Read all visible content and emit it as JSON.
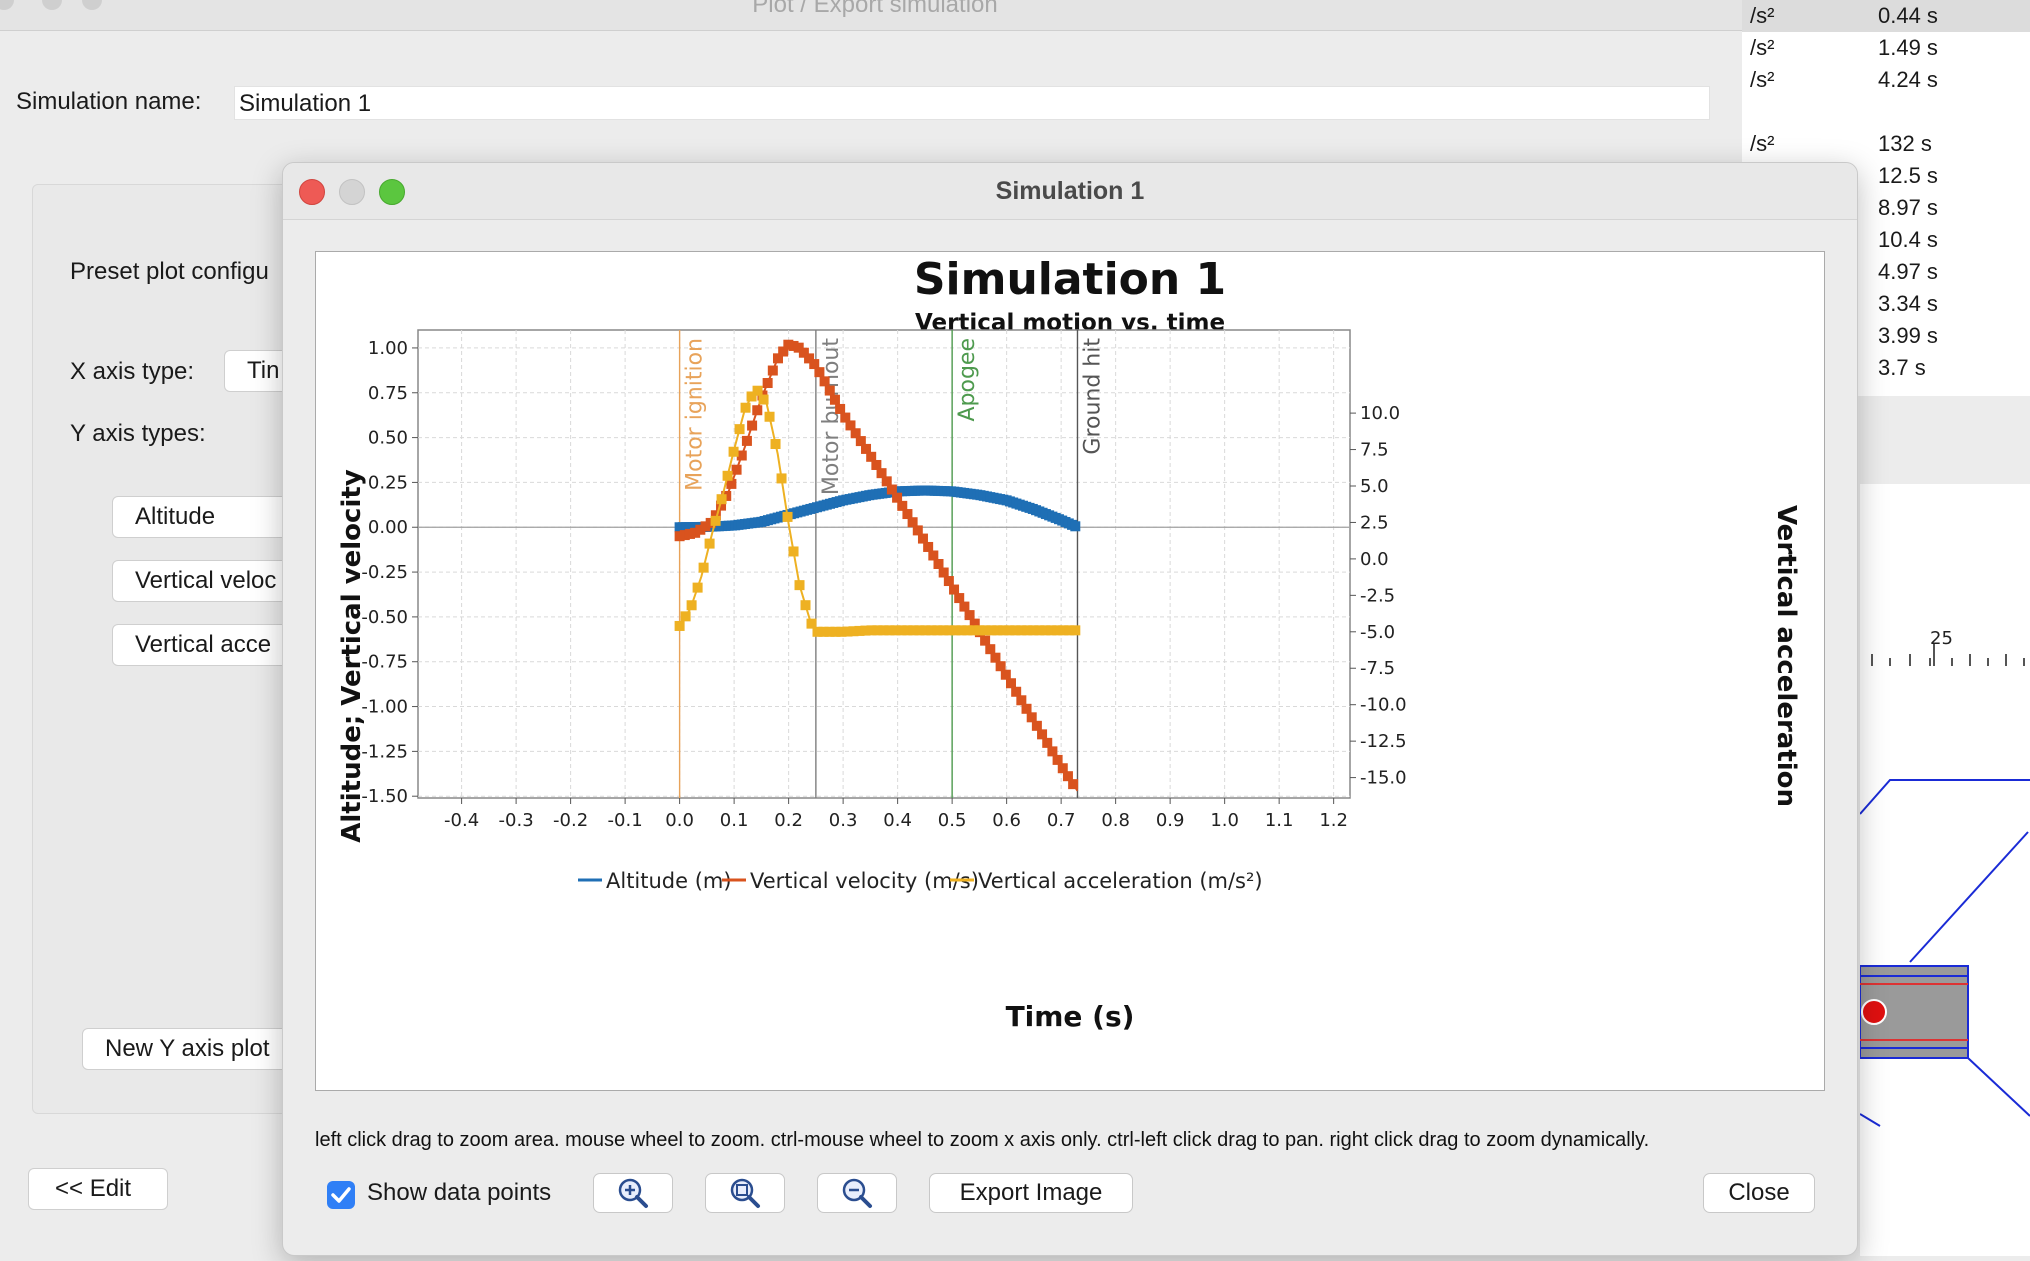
{
  "background_dialog": {
    "title": "Plot / Export simulation",
    "simulation_name_label": "Simulation name:",
    "simulation_name_value": "Simulation 1",
    "preset_label": "Preset plot configu",
    "x_axis_type_label": "X axis type:",
    "x_axis_type_value": "Tin",
    "y_axis_types_label": "Y axis types:",
    "y_axis_buttons": [
      "Altitude",
      "Vertical veloc",
      "Vertical acce"
    ],
    "new_y_axis_button": "New Y axis plot",
    "edit_button": "<< Edit"
  },
  "right_table": {
    "rows": [
      {
        "unit": "/s²",
        "value": "0.44 s"
      },
      {
        "unit": "/s²",
        "value": "1.49 s"
      },
      {
        "unit": "/s²",
        "value": "4.24 s"
      },
      {
        "unit": "",
        "value": ""
      },
      {
        "unit": "/s²",
        "value": "132 s"
      },
      {
        "unit": "",
        "value": "12.5 s"
      },
      {
        "unit": "",
        "value": "8.97 s"
      },
      {
        "unit": "",
        "value": "10.4 s"
      },
      {
        "unit": "",
        "value": "4.97 s"
      },
      {
        "unit": "",
        "value": "3.34 s"
      },
      {
        "unit": "",
        "value": "3.99 s"
      },
      {
        "unit": "",
        "value": "3.7 s"
      }
    ],
    "ruler_label": "25"
  },
  "plot_window": {
    "title": "Simulation 1",
    "hint": "left click drag to zoom area. mouse wheel to zoom. ctrl-mouse wheel to zoom x axis only. ctrl-left click drag to pan.  right click drag to zoom dynamically.",
    "show_data_points_label": "Show data points",
    "show_data_points_checked": true,
    "zoom_in_icon": "zoom-in-icon",
    "zoom_reset_icon": "zoom-fit-icon",
    "zoom_out_icon": "zoom-out-icon",
    "export_button": "Export Image",
    "close_button": "Close"
  },
  "chart_data": {
    "type": "line",
    "title": "Simulation 1",
    "subtitle": "Vertical motion vs. time",
    "xlabel": "Time (s)",
    "ylabel_left": "Altitude; Vertical velocity",
    "ylabel_right": "Vertical acceleration",
    "xlim": [
      -0.48,
      1.23
    ],
    "ylim_left": [
      -1.51,
      1.1
    ],
    "ylim_right": [
      -16.4,
      15.7
    ],
    "x_ticks": [
      "-0.4",
      "-0.3",
      "-0.2",
      "-0.1",
      "0.0",
      "0.1",
      "0.2",
      "0.3",
      "0.4",
      "0.5",
      "0.6",
      "0.7",
      "0.8",
      "0.9",
      "1.0",
      "1.1",
      "1.2"
    ],
    "y_ticks_left": [
      "1.00",
      "0.75",
      "0.50",
      "0.25",
      "0.00",
      "-0.25",
      "-0.50",
      "-0.75",
      "-1.00",
      "-1.25",
      "-1.50"
    ],
    "y_ticks_right": [
      "10.0",
      "7.5",
      "5.0",
      "2.5",
      "0.0",
      "-2.5",
      "-5.0",
      "-7.5",
      "-10.0",
      "-12.5",
      "-15.0"
    ],
    "grid": true,
    "legend_position": "bottom",
    "events": [
      {
        "label": "Motor ignition",
        "x": 0.0,
        "color": "#e8a35a"
      },
      {
        "label": "Motor burnout",
        "x": 0.25,
        "color": "#7f7f7f"
      },
      {
        "label": "Apogee",
        "x": 0.5,
        "color": "#4e9a4e"
      },
      {
        "label": "Ground hit",
        "x": 0.73,
        "color": "#555555"
      }
    ],
    "series": [
      {
        "name": "Altitude (m)",
        "axis": "left",
        "color": "#1f6fb5",
        "x": [
          0.0,
          0.05,
          0.1,
          0.15,
          0.2,
          0.25,
          0.3,
          0.35,
          0.4,
          0.45,
          0.5,
          0.55,
          0.6,
          0.65,
          0.7,
          0.73
        ],
        "y": [
          0.0,
          0.002,
          0.01,
          0.03,
          0.07,
          0.11,
          0.15,
          0.18,
          0.2,
          0.205,
          0.2,
          0.18,
          0.15,
          0.1,
          0.04,
          0.0
        ]
      },
      {
        "name": "Vertical velocity (m/s)",
        "axis": "left",
        "color": "#d9531e",
        "x": [
          0.0,
          0.03,
          0.06,
          0.09,
          0.12,
          0.15,
          0.18,
          0.2,
          0.22,
          0.25,
          0.3,
          0.35,
          0.4,
          0.45,
          0.5,
          0.55,
          0.6,
          0.65,
          0.7,
          0.73
        ],
        "y": [
          -0.05,
          -0.03,
          0.03,
          0.2,
          0.45,
          0.72,
          0.94,
          1.02,
          1.0,
          0.9,
          0.63,
          0.4,
          0.16,
          -0.08,
          -0.33,
          -0.58,
          -0.83,
          -1.08,
          -1.33,
          -1.47
        ]
      },
      {
        "name": "Vertical acceleration (m/s²)",
        "axis": "right",
        "color": "#eeb122",
        "x": [
          0.0,
          0.02,
          0.04,
          0.06,
          0.08,
          0.1,
          0.12,
          0.14,
          0.16,
          0.18,
          0.2,
          0.22,
          0.24,
          0.25,
          0.3,
          0.35,
          0.4,
          0.5,
          0.6,
          0.7,
          0.73
        ],
        "y": [
          -4.6,
          -3.4,
          -1.2,
          1.8,
          4.5,
          7.5,
          10.3,
          11.7,
          10.6,
          7.2,
          2.4,
          -1.8,
          -4.3,
          -5.0,
          -5.0,
          -4.9,
          -4.9,
          -4.9,
          -4.9,
          -4.9,
          -4.9
        ]
      }
    ]
  }
}
